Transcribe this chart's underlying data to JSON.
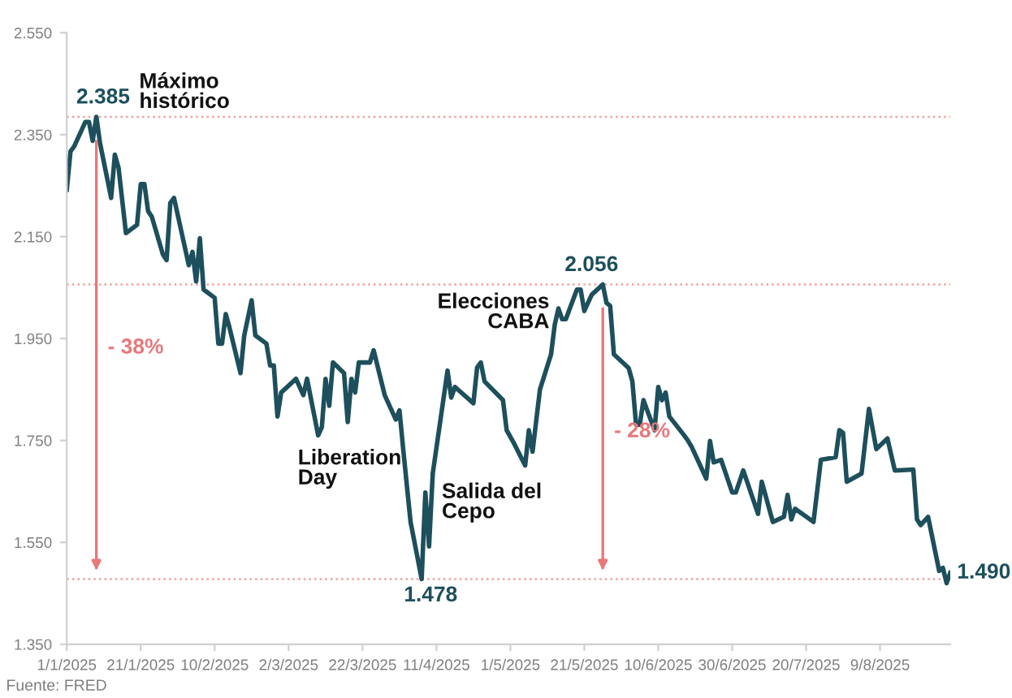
{
  "chart_data": {
    "type": "line",
    "x": [
      "2025-01-01",
      "2025-01-02",
      "2025-01-03",
      "2025-01-06",
      "2025-01-07",
      "2025-01-08",
      "2025-01-09",
      "2025-01-10",
      "2025-01-13",
      "2025-01-14",
      "2025-01-15",
      "2025-01-17",
      "2025-01-20",
      "2025-01-21",
      "2025-01-22",
      "2025-01-23",
      "2025-01-24",
      "2025-01-27",
      "2025-01-28",
      "2025-01-29",
      "2025-01-30",
      "2025-02-03",
      "2025-02-04",
      "2025-02-05",
      "2025-02-06",
      "2025-02-07",
      "2025-02-10",
      "2025-02-11",
      "2025-02-12",
      "2025-02-13",
      "2025-02-14",
      "2025-02-17",
      "2025-02-18",
      "2025-02-20",
      "2025-02-21",
      "2025-02-24",
      "2025-02-25",
      "2025-02-26",
      "2025-02-27",
      "2025-02-28",
      "2025-03-04",
      "2025-03-06",
      "2025-03-07",
      "2025-03-10",
      "2025-03-11",
      "2025-03-12",
      "2025-03-13",
      "2025-03-14",
      "2025-03-17",
      "2025-03-18",
      "2025-03-19",
      "2025-03-20",
      "2025-03-21",
      "2025-03-24",
      "2025-03-25",
      "2025-03-28",
      "2025-03-31",
      "2025-04-01",
      "2025-04-02",
      "2025-04-04",
      "2025-04-07",
      "2025-04-08",
      "2025-04-09",
      "2025-04-10",
      "2025-04-14",
      "2025-04-15",
      "2025-04-16",
      "2025-04-21",
      "2025-04-22",
      "2025-04-23",
      "2025-04-24",
      "2025-04-29",
      "2025-04-30",
      "2025-05-02",
      "2025-05-05",
      "2025-05-06",
      "2025-05-07",
      "2025-05-09",
      "2025-05-12",
      "2025-05-13",
      "2025-05-14",
      "2025-05-15",
      "2025-05-16",
      "2025-05-19",
      "2025-05-20",
      "2025-05-21",
      "2025-05-23",
      "2025-05-26",
      "2025-05-27",
      "2025-05-28",
      "2025-05-29",
      "2025-06-02",
      "2025-06-03",
      "2025-06-04",
      "2025-06-05",
      "2025-06-06",
      "2025-06-09",
      "2025-06-10",
      "2025-06-11",
      "2025-06-12",
      "2025-06-13",
      "2025-06-17",
      "2025-06-18",
      "2025-06-19",
      "2025-06-23",
      "2025-06-24",
      "2025-06-25",
      "2025-06-27",
      "2025-06-30",
      "2025-07-01",
      "2025-07-03",
      "2025-07-07",
      "2025-07-08",
      "2025-07-11",
      "2025-07-14",
      "2025-07-15",
      "2025-07-16",
      "2025-07-17",
      "2025-07-22",
      "2025-07-24",
      "2025-07-28",
      "2025-07-29",
      "2025-07-30",
      "2025-07-31",
      "2025-08-04",
      "2025-08-06",
      "2025-08-08",
      "2025-08-11",
      "2025-08-13",
      "2025-08-18",
      "2025-08-19",
      "2025-08-20",
      "2025-08-22",
      "2025-08-25",
      "2025-08-26",
      "2025-08-27",
      "2025-08-28"
    ],
    "series": [
      {
        "color": "#1d4f5c",
        "values": [
          2242,
          2317,
          2327,
          2375,
          2375,
          2338,
          2385,
          2333,
          2226,
          2311,
          2285,
          2157,
          2173,
          2253,
          2253,
          2200,
          2189,
          2115,
          2104,
          2216,
          2226,
          2094,
          2120,
          2062,
          2147,
          2046,
          2030,
          1940,
          1940,
          1998,
          1972,
          1882,
          1956,
          2025,
          1956,
          1940,
          1897,
          1897,
          1797,
          1844,
          1871,
          1839,
          1871,
          1760,
          1776,
          1871,
          1818,
          1903,
          1882,
          1786,
          1871,
          1844,
          1903,
          1903,
          1927,
          1839,
          1791,
          1809,
          1733,
          1590,
          1478,
          1648,
          1542,
          1685,
          1887,
          1834,
          1855,
          1823,
          1893,
          1903,
          1866,
          1829,
          1770,
          1744,
          1701,
          1770,
          1728,
          1850,
          1919,
          1977,
          2009,
          1988,
          1988,
          2046,
          2046,
          2004,
          2036,
          2056,
          2020,
          2014,
          1919,
          1892,
          1866,
          1781,
          1781,
          1829,
          1770,
          1855,
          1829,
          1844,
          1797,
          1760,
          1750,
          1738,
          1675,
          1749,
          1707,
          1712,
          1648,
          1648,
          1691,
          1606,
          1669,
          1590,
          1600,
          1643,
          1595,
          1616,
          1590,
          1712,
          1717,
          1770,
          1765,
          1669,
          1685,
          1812,
          1733,
          1754,
          1691,
          1693,
          1595,
          1584,
          1600,
          1494,
          1500,
          1470,
          1490
        ]
      }
    ],
    "xlim": [
      "2025-01-01",
      "2025-08-28"
    ],
    "xticks": [
      {
        "value": "2025-01-01",
        "label": "1/1/2025"
      },
      {
        "value": "2025-01-21",
        "label": "21/1/2025"
      },
      {
        "value": "2025-02-10",
        "label": "10/2/2025"
      },
      {
        "value": "2025-03-02",
        "label": "2/3/2025"
      },
      {
        "value": "2025-03-22",
        "label": "22/3/2025"
      },
      {
        "value": "2025-04-11",
        "label": "11/4/2025"
      },
      {
        "value": "2025-05-01",
        "label": "1/5/2025"
      },
      {
        "value": "2025-05-21",
        "label": "21/5/2025"
      },
      {
        "value": "2025-06-10",
        "label": "10/6/2025"
      },
      {
        "value": "2025-06-30",
        "label": "30/6/2025"
      },
      {
        "value": "2025-07-20",
        "label": "20/7/2025"
      },
      {
        "value": "2025-08-09",
        "label": "9/8/2025"
      }
    ],
    "ylim": [
      1350,
      2550
    ],
    "yticks": [
      {
        "value": 1350,
        "label": "1.350"
      },
      {
        "value": 1550,
        "label": "1.550"
      },
      {
        "value": 1750,
        "label": "1.750"
      },
      {
        "value": 1950,
        "label": "1.950"
      },
      {
        "value": 2150,
        "label": "2.150"
      },
      {
        "value": 2350,
        "label": "2.350"
      },
      {
        "value": 2550,
        "label": "2.550"
      }
    ],
    "ref_lines": [
      {
        "axis": "y",
        "value": 2385,
        "color": "#f2a0a0",
        "line_style": "dotted"
      },
      {
        "axis": "y",
        "value": 2056,
        "color": "#f2a0a0",
        "line_style": "dotted"
      },
      {
        "axis": "y",
        "value": 1478,
        "color": "#f2a0a0",
        "line_style": "dotted"
      },
      {
        "axis": "x",
        "value": "2025-01-09",
        "label": "- 38%",
        "color": "#e8787a",
        "line_style": "solid"
      },
      {
        "axis": "x",
        "value": "2025-05-26",
        "label": "- 28%",
        "color": "#e8787a",
        "line_style": "solid"
      }
    ],
    "annotations": [
      {
        "text": "2.385",
        "x": "2025-01-09",
        "y": 2385
      },
      {
        "text": "Máximo\nhistórico",
        "x": "2025-01-09",
        "y": 2385
      },
      {
        "text": "2.056",
        "x": "2025-05-26",
        "y": 2056
      },
      {
        "text": "Elecciones\nCABA",
        "x": "2025-05-14",
        "y": 2009
      },
      {
        "text": "Liberation\nDay",
        "x": "2025-03-10",
        "y": 1760
      },
      {
        "text": "Salida del\nCepo",
        "x": "2025-04-10",
        "y": 1685
      },
      {
        "text": "1.478",
        "x": "2025-04-07",
        "y": 1478
      },
      {
        "text": "1.490",
        "x": "2025-08-28",
        "y": 1490
      },
      "Fuente: FRED"
    ]
  }
}
